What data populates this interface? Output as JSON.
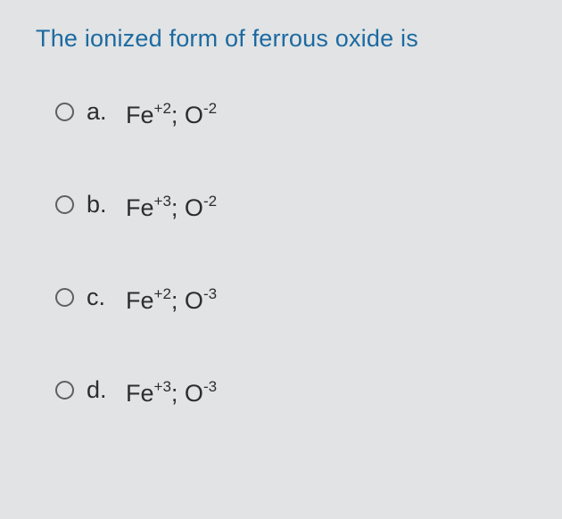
{
  "question": {
    "text": "The ionized form of ferrous oxide is",
    "text_color": "#1c6aa1",
    "font_size_pt": 20
  },
  "background_color": "#e1e3e4",
  "body_text_color": "#2c2d2e",
  "radio_border_color": "#5e5f60",
  "options": [
    {
      "letter": "a.",
      "element1": "Fe",
      "charge1": "+2",
      "separator": "; ",
      "element2": "O",
      "charge2": "-2",
      "selected": false
    },
    {
      "letter": "b.",
      "element1": "Fe",
      "charge1": "+3",
      "separator": "; ",
      "element2": "O",
      "charge2": "-2",
      "selected": false
    },
    {
      "letter": "c.",
      "element1": "Fe",
      "charge1": "+2",
      "separator": "; ",
      "element2": "O",
      "charge2": "-3",
      "selected": false
    },
    {
      "letter": "d.",
      "element1": "Fe",
      "charge1": "+3",
      "separator": "; ",
      "element2": "O",
      "charge2": "-3",
      "selected": false
    }
  ]
}
